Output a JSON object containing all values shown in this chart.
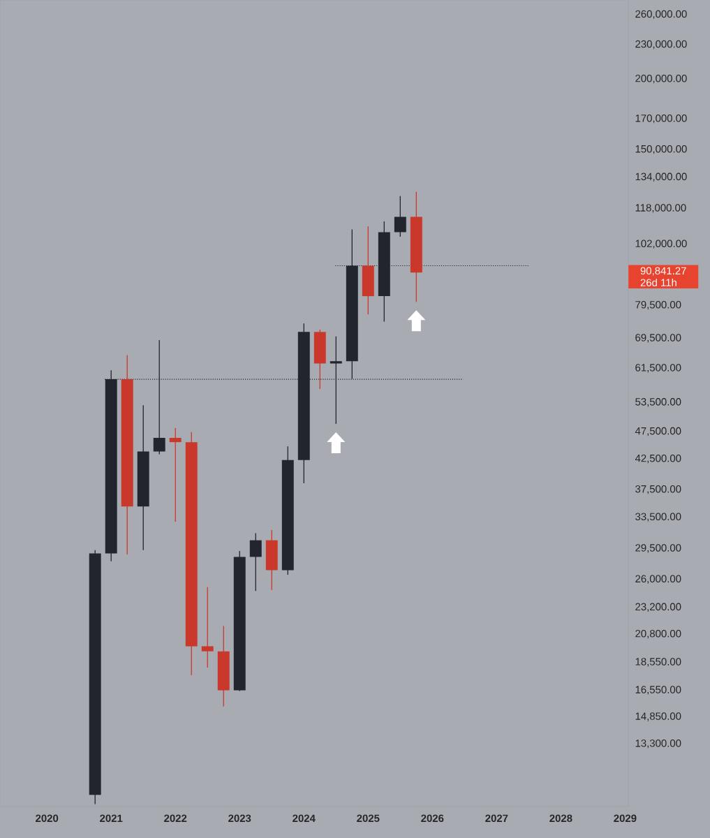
{
  "chart_data": {
    "type": "candlestick",
    "x": [
      2020.75,
      2021,
      2021.25,
      2021.5,
      2021.75,
      2022,
      2022.25,
      2022.5,
      2022.75,
      2023,
      2023.25,
      2023.5,
      2023.75,
      2024,
      2024.25,
      2024.5,
      2024.75,
      2025,
      2025.25,
      2025.5,
      2025.75
    ],
    "ohlc": [
      [
        10800,
        29300,
        10400,
        28900
      ],
      [
        28900,
        61000,
        28000,
        58800
      ],
      [
        58800,
        64900,
        28800,
        35000
      ],
      [
        35000,
        52900,
        29300,
        43800
      ],
      [
        43800,
        69000,
        43300,
        46300
      ],
      [
        46300,
        48200,
        32900,
        45500
      ],
      [
        45500,
        47400,
        17600,
        19800
      ],
      [
        19800,
        25200,
        18150,
        19400
      ],
      [
        19400,
        21500,
        15500,
        16550
      ],
      [
        16550,
        29200,
        16500,
        28500
      ],
      [
        28500,
        31400,
        24800,
        30500
      ],
      [
        30500,
        31800,
        24900,
        27000
      ],
      [
        27000,
        44700,
        26500,
        42300
      ],
      [
        42300,
        73800,
        38500,
        71300
      ],
      [
        71300,
        72000,
        56500,
        62700
      ],
      [
        62700,
        70000,
        49000,
        63300
      ],
      [
        63300,
        108300,
        58900,
        93400
      ],
      [
        93400,
        109600,
        76600,
        82500
      ],
      [
        82500,
        111900,
        74400,
        107100
      ],
      [
        107100,
        124100,
        105100,
        114000
      ],
      [
        114000,
        126200,
        80600,
        90841.27
      ]
    ],
    "colors": [
      "#22252e",
      "#22252e",
      "#c9382b",
      "#22252e",
      "#22252e",
      "#c9382b",
      "#c9382b",
      "#c9382b",
      "#c9382b",
      "#22252e",
      "#22252e",
      "#c9382b",
      "#22252e",
      "#22252e",
      "#c9382b",
      "#22252e",
      "#22252e",
      "#c9382b",
      "#22252e",
      "#22252e",
      "#c9382b"
    ],
    "series": [
      {
        "type": "line",
        "x": [
          2020.9,
          2026.48
        ],
        "values": [
          58800,
          58800
        ],
        "color": "#1e1f24",
        "line_style": "dotted"
      },
      {
        "type": "line",
        "x": [
          2024.49,
          2027.5
        ],
        "values": [
          93400,
          93400
        ],
        "color": "#1e1f24",
        "line_style": "dotted"
      }
    ],
    "log": "y",
    "xlim": [
      2019.27,
      2029.05
    ],
    "ylim": [
      10300,
      276000
    ],
    "xticks": [
      2020,
      2021,
      2022,
      2023,
      2024,
      2025,
      2026,
      2027,
      2028,
      2029
    ],
    "yticks": [
      {
        "value": 13300,
        "label": "13,300.00"
      },
      {
        "value": 14850,
        "label": "14,850.00"
      },
      {
        "value": 16550,
        "label": "16,550.00"
      },
      {
        "value": 18550,
        "label": "18,550.00"
      },
      {
        "value": 20800,
        "label": "20,800.00"
      },
      {
        "value": 23200,
        "label": "23,200.00"
      },
      {
        "value": 26000,
        "label": "26,000.00"
      },
      {
        "value": 29500,
        "label": "29,500.00"
      },
      {
        "value": 33500,
        "label": "33,500.00"
      },
      {
        "value": 37500,
        "label": "37,500.00"
      },
      {
        "value": 42500,
        "label": "42,500.00"
      },
      {
        "value": 47500,
        "label": "47,500.00"
      },
      {
        "value": 53500,
        "label": "53,500.00"
      },
      {
        "value": 61500,
        "label": "61,500.00"
      },
      {
        "value": 69500,
        "label": "69,500.00"
      },
      {
        "value": 79500,
        "label": "79,500.00"
      },
      {
        "value": 102000,
        "label": "102,000.00"
      },
      {
        "value": 118000,
        "label": "118,000.00"
      },
      {
        "value": 134000,
        "label": "134,000.00"
      },
      {
        "value": 150000,
        "label": "150,000.00"
      },
      {
        "value": 170000,
        "label": "170,000.00"
      },
      {
        "value": 200000,
        "label": "200,000.00"
      },
      {
        "value": 230000,
        "label": "230,000.00"
      },
      {
        "value": 260000,
        "label": "260,000.00"
      }
    ],
    "annotations": [
      "90,841.27",
      "26d 11h"
    ],
    "grid": false
  }
}
